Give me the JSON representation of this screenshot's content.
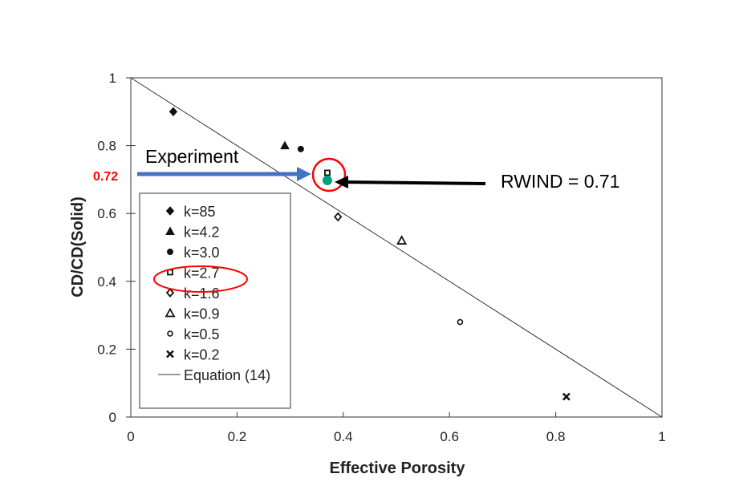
{
  "chart_data": {
    "type": "scatter",
    "xlabel": "Effective  Porosity",
    "ylabel": "CD/CD(Solid)",
    "xlim": [
      0,
      1
    ],
    "ylim": [
      0,
      1
    ],
    "xticks": [
      "0",
      "0.2",
      "0.4",
      "0.6",
      "0.8",
      "1"
    ],
    "yticks": [
      "0",
      "0.2",
      "0.4",
      "0.6",
      "0.8",
      "1"
    ],
    "grid": false,
    "legend_placement": "left",
    "series": [
      {
        "name": "k=85",
        "marker": "filled-diamond",
        "x": [
          0.08
        ],
        "y": [
          0.9
        ]
      },
      {
        "name": "k=4.2",
        "marker": "filled-triangle",
        "x": [
          0.29
        ],
        "y": [
          0.8
        ]
      },
      {
        "name": "k=3.0",
        "marker": "filled-circle",
        "x": [
          0.32
        ],
        "y": [
          0.79
        ]
      },
      {
        "name": "k=2.7",
        "marker": "open-square",
        "x": [
          0.37
        ],
        "y": [
          0.72
        ]
      },
      {
        "name": "k=1.6",
        "marker": "open-diamond",
        "x": [
          0.39
        ],
        "y": [
          0.59
        ]
      },
      {
        "name": "k=0.9",
        "marker": "open-triangle",
        "x": [
          0.51
        ],
        "y": [
          0.52
        ]
      },
      {
        "name": "k=0.5",
        "marker": "open-circle",
        "x": [
          0.62
        ],
        "y": [
          0.28
        ]
      },
      {
        "name": "k=0.2",
        "marker": "cross",
        "x": [
          0.82
        ],
        "y": [
          0.06
        ]
      }
    ],
    "line": {
      "name": "Equation  (14)",
      "x": [
        0,
        1
      ],
      "y": [
        1,
        0
      ]
    },
    "annotations": {
      "experiment_label": "Experiment",
      "experiment_value": "0.72",
      "rwind_label": "RWIND = 0.71",
      "rwind_point": {
        "x": 0.37,
        "y": 0.7
      },
      "colors": {
        "experiment_value": "#ff0000",
        "arrow": "#4472c4",
        "rwind_point": "#00a080",
        "highlight": "#ff0000"
      }
    }
  }
}
